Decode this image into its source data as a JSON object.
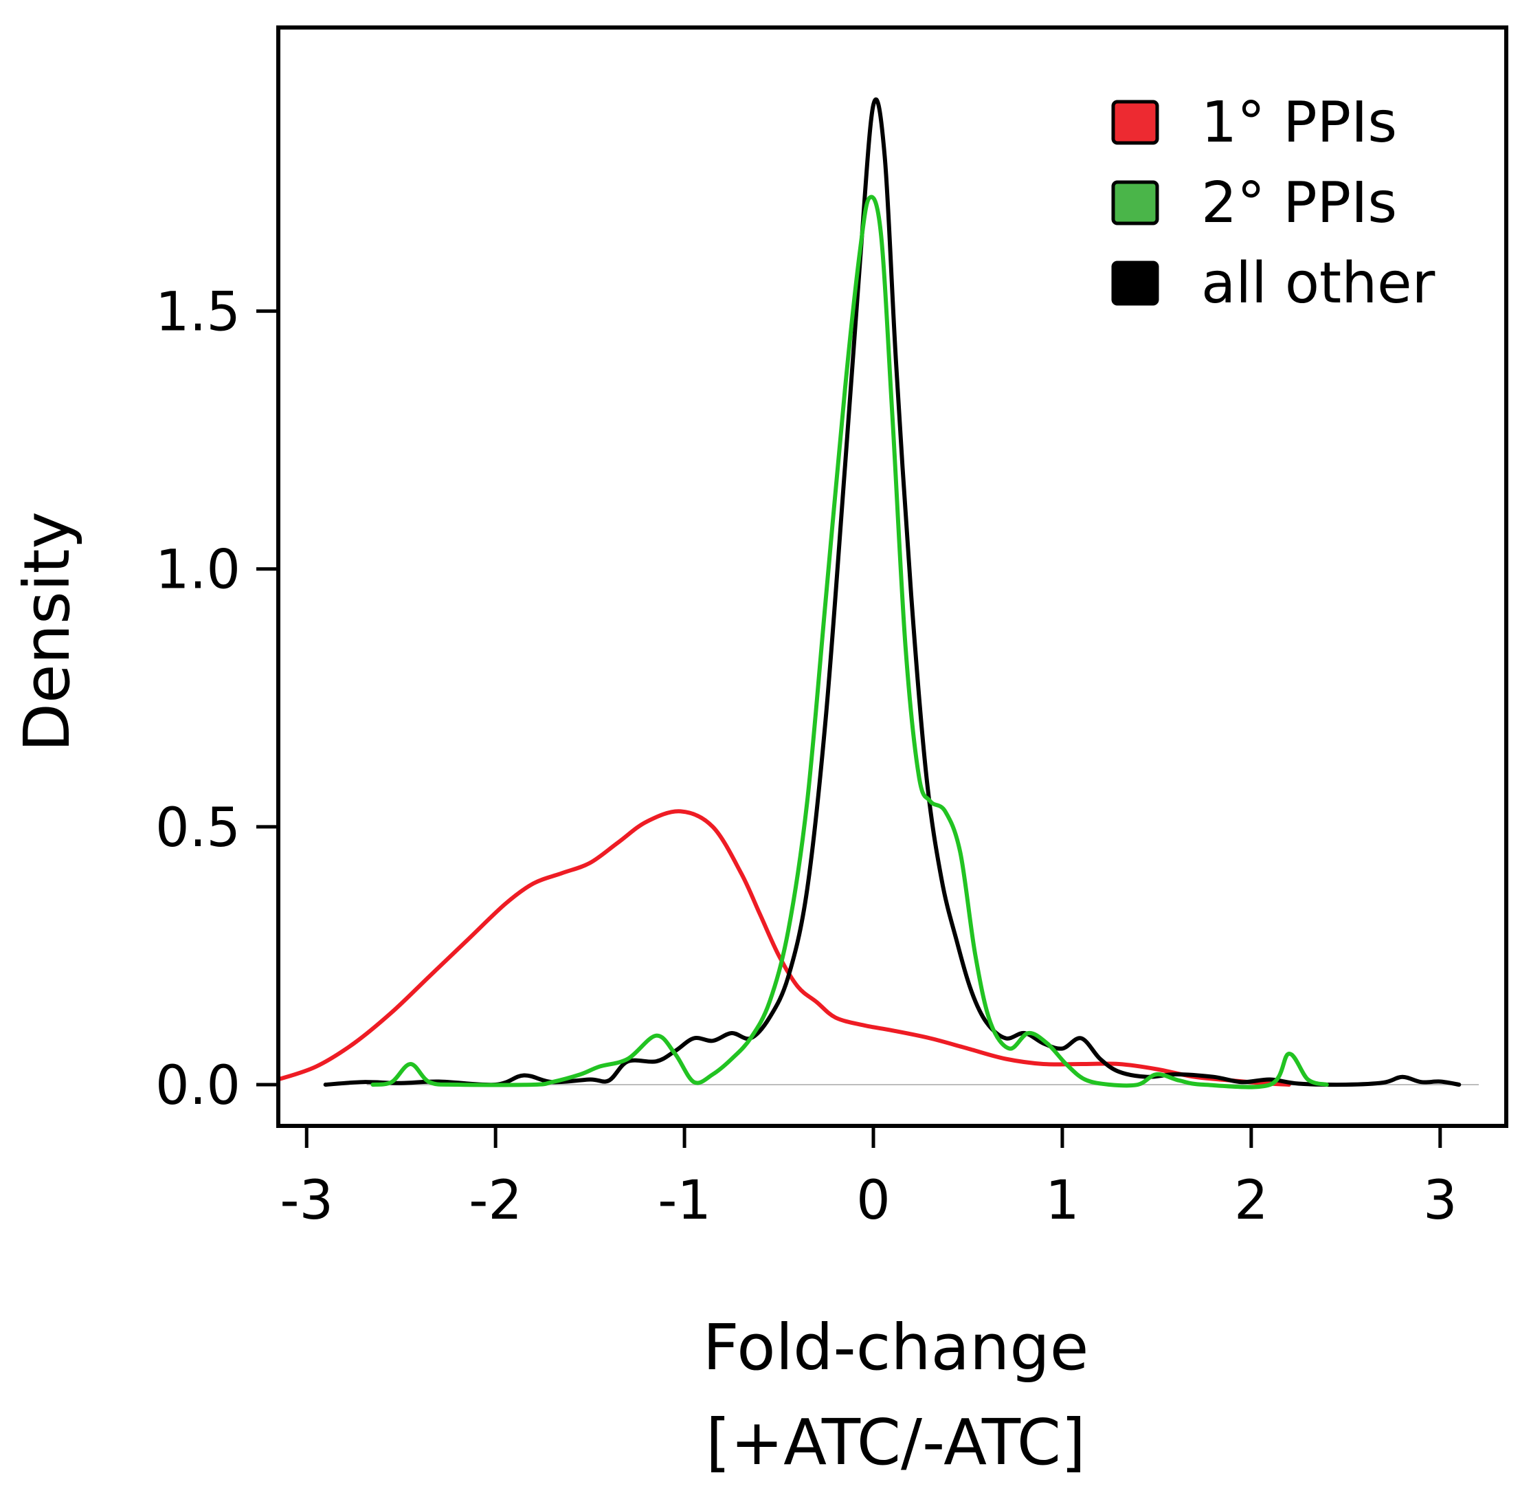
{
  "chart_data": {
    "type": "line",
    "subtype": "density",
    "title": "",
    "xlabel": [
      "Fold-change",
      "[+ATC/-ATC]"
    ],
    "ylabel": "Density",
    "xlim": [
      -3.15,
      3.35
    ],
    "ylim": [
      -0.08,
      2.05
    ],
    "xticks": [
      -3,
      -2,
      -1,
      0,
      1,
      2,
      3
    ],
    "xtick_labels": [
      "-3",
      "-2",
      "-1",
      "0",
      "1",
      "2",
      "3"
    ],
    "yticks": [
      0.0,
      0.5,
      1.0,
      1.5
    ],
    "ytick_labels": [
      "0.0",
      "0.5",
      "1.0",
      "1.5"
    ],
    "grid": false,
    "baseline": 0,
    "legend_position": "top-right",
    "series": [
      {
        "name": "1° PPIs",
        "color": "#ee1c24",
        "legend_color": "#ed2a31",
        "points": [
          [
            -3.15,
            0.01
          ],
          [
            -2.95,
            0.035
          ],
          [
            -2.75,
            0.08
          ],
          [
            -2.55,
            0.14
          ],
          [
            -2.35,
            0.21
          ],
          [
            -2.15,
            0.28
          ],
          [
            -1.95,
            0.35
          ],
          [
            -1.8,
            0.39
          ],
          [
            -1.65,
            0.41
          ],
          [
            -1.5,
            0.43
          ],
          [
            -1.35,
            0.47
          ],
          [
            -1.2,
            0.51
          ],
          [
            -1.02,
            0.53
          ],
          [
            -0.85,
            0.5
          ],
          [
            -0.7,
            0.41
          ],
          [
            -0.6,
            0.33
          ],
          [
            -0.5,
            0.25
          ],
          [
            -0.4,
            0.19
          ],
          [
            -0.3,
            0.16
          ],
          [
            -0.2,
            0.13
          ],
          [
            -0.05,
            0.115
          ],
          [
            0.1,
            0.105
          ],
          [
            0.3,
            0.09
          ],
          [
            0.5,
            0.07
          ],
          [
            0.7,
            0.05
          ],
          [
            0.9,
            0.04
          ],
          [
            1.1,
            0.04
          ],
          [
            1.3,
            0.04
          ],
          [
            1.5,
            0.03
          ],
          [
            1.7,
            0.015
          ],
          [
            1.9,
            0.008
          ],
          [
            2.05,
            0.003
          ],
          [
            2.2,
            0.0
          ]
        ]
      },
      {
        "name": "2° PPIs",
        "color": "#22c322",
        "legend_color": "#4ab549",
        "points": [
          [
            -2.65,
            0.0
          ],
          [
            -2.55,
            0.005
          ],
          [
            -2.45,
            0.04
          ],
          [
            -2.35,
            0.005
          ],
          [
            -2.2,
            0.0
          ],
          [
            -1.8,
            0.0
          ],
          [
            -1.7,
            0.005
          ],
          [
            -1.55,
            0.02
          ],
          [
            -1.45,
            0.035
          ],
          [
            -1.3,
            0.05
          ],
          [
            -1.15,
            0.095
          ],
          [
            -1.05,
            0.06
          ],
          [
            -0.95,
            0.005
          ],
          [
            -0.85,
            0.02
          ],
          [
            -0.75,
            0.05
          ],
          [
            -0.65,
            0.09
          ],
          [
            -0.55,
            0.16
          ],
          [
            -0.45,
            0.3
          ],
          [
            -0.35,
            0.55
          ],
          [
            -0.25,
            0.95
          ],
          [
            -0.15,
            1.35
          ],
          [
            -0.07,
            1.62
          ],
          [
            -0.02,
            1.72
          ],
          [
            0.04,
            1.65
          ],
          [
            0.1,
            1.3
          ],
          [
            0.17,
            0.85
          ],
          [
            0.24,
            0.6
          ],
          [
            0.3,
            0.55
          ],
          [
            0.38,
            0.53
          ],
          [
            0.46,
            0.45
          ],
          [
            0.54,
            0.25
          ],
          [
            0.62,
            0.12
          ],
          [
            0.72,
            0.07
          ],
          [
            0.82,
            0.1
          ],
          [
            0.92,
            0.08
          ],
          [
            1.02,
            0.04
          ],
          [
            1.12,
            0.01
          ],
          [
            1.25,
            0.0
          ],
          [
            1.4,
            0.0
          ],
          [
            1.5,
            0.02
          ],
          [
            1.62,
            0.008
          ],
          [
            1.75,
            0.0
          ],
          [
            2.1,
            0.0
          ],
          [
            2.2,
            0.06
          ],
          [
            2.3,
            0.01
          ],
          [
            2.4,
            0.0
          ]
        ]
      },
      {
        "name": "all other",
        "color": "#000000",
        "legend_color": "#000000",
        "points": [
          [
            -2.9,
            0.0
          ],
          [
            -2.7,
            0.005
          ],
          [
            -2.5,
            0.003
          ],
          [
            -2.3,
            0.006
          ],
          [
            -2.0,
            0.0
          ],
          [
            -1.85,
            0.018
          ],
          [
            -1.7,
            0.005
          ],
          [
            -1.5,
            0.01
          ],
          [
            -1.4,
            0.008
          ],
          [
            -1.3,
            0.045
          ],
          [
            -1.15,
            0.045
          ],
          [
            -1.05,
            0.065
          ],
          [
            -0.95,
            0.09
          ],
          [
            -0.85,
            0.085
          ],
          [
            -0.75,
            0.1
          ],
          [
            -0.65,
            0.09
          ],
          [
            -0.55,
            0.13
          ],
          [
            -0.45,
            0.21
          ],
          [
            -0.35,
            0.38
          ],
          [
            -0.25,
            0.72
          ],
          [
            -0.15,
            1.2
          ],
          [
            -0.07,
            1.6
          ],
          [
            0.0,
            1.9
          ],
          [
            0.06,
            1.8
          ],
          [
            0.12,
            1.4
          ],
          [
            0.2,
            0.95
          ],
          [
            0.28,
            0.6
          ],
          [
            0.36,
            0.4
          ],
          [
            0.44,
            0.28
          ],
          [
            0.52,
            0.18
          ],
          [
            0.6,
            0.12
          ],
          [
            0.7,
            0.09
          ],
          [
            0.8,
            0.1
          ],
          [
            0.9,
            0.08
          ],
          [
            1.0,
            0.07
          ],
          [
            1.1,
            0.09
          ],
          [
            1.2,
            0.05
          ],
          [
            1.3,
            0.025
          ],
          [
            1.45,
            0.015
          ],
          [
            1.6,
            0.02
          ],
          [
            1.8,
            0.015
          ],
          [
            1.95,
            0.005
          ],
          [
            2.1,
            0.01
          ],
          [
            2.25,
            0.002
          ],
          [
            2.5,
            0.0
          ],
          [
            2.7,
            0.004
          ],
          [
            2.8,
            0.015
          ],
          [
            2.9,
            0.005
          ],
          [
            3.0,
            0.006
          ],
          [
            3.1,
            0.0
          ]
        ]
      }
    ]
  }
}
